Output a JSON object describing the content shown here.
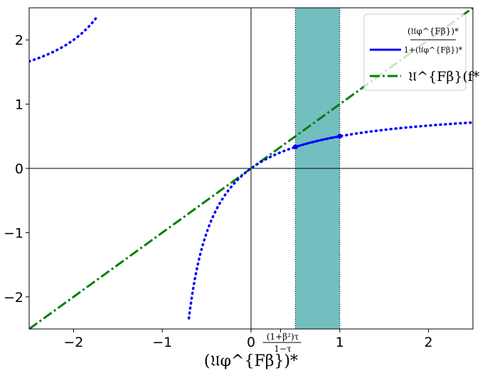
{
  "chart_data": {
    "type": "line",
    "xlim": [
      -2.5,
      2.5
    ],
    "ylim": [
      -2.5,
      2.5
    ],
    "x_ticks": [
      -2,
      -1,
      0,
      1,
      2
    ],
    "y_ticks": [
      -2,
      -1,
      0,
      1,
      2
    ],
    "x_tick_labels": [
      "−2",
      "−1",
      "0",
      "1",
      "2"
    ],
    "y_tick_labels": [
      "−2",
      "−1",
      "0",
      "1",
      "2"
    ],
    "xlabel": "(𝔘φ^{Fβ})*",
    "special_tick": {
      "x": 0.333,
      "label_num": "(1+β²)τ",
      "label_den": "1−τ"
    },
    "shaded_region": {
      "x_from": 0.5,
      "x_to": 1.0,
      "color": "#73bfbf"
    },
    "shaded_region_x": [
      0.5,
      1.0
    ],
    "grid": false,
    "legend_position": "top-right",
    "series": [
      {
        "name": "(𝔘φ^{Fβ})* / (1+(𝔘φ^{Fβ})*)",
        "function": "x/(1+x)",
        "color": "#0000ff",
        "style": "dotted",
        "solid_segment": [
          0.5,
          1.0
        ],
        "endpoints": [
          [
            0.5,
            0.333
          ],
          [
            1.0,
            0.5
          ]
        ]
      },
      {
        "name": "𝔘^{Fβ}(f*)",
        "function": "x",
        "color": "#008000",
        "style": "dash-dot"
      }
    ]
  },
  "legend": {
    "entry1_num": "(𝔘φ^{Fβ})*",
    "entry1_den": "1+(𝔘φ^{Fβ})*",
    "entry2": "𝔘^{Fβ}(f*)"
  }
}
